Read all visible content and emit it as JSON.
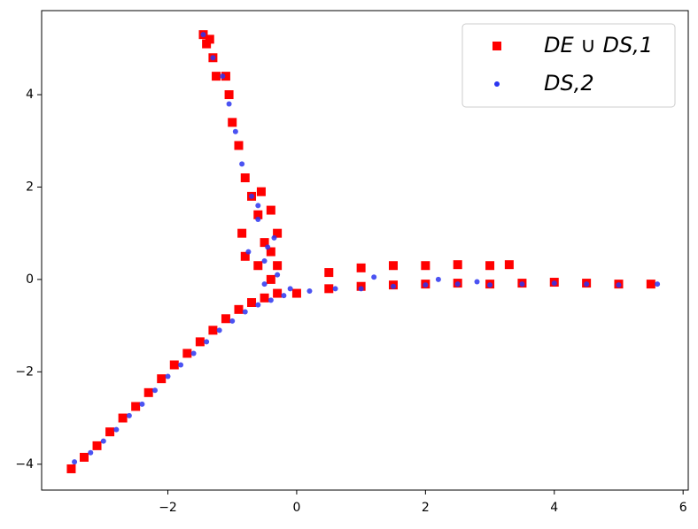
{
  "chart_data": {
    "type": "scatter",
    "xlim": [
      -3.96,
      6.08
    ],
    "ylim": [
      -4.56,
      5.82
    ],
    "xticks": [
      {
        "value": -2,
        "label": "−2"
      },
      0,
      2,
      4,
      6
    ],
    "yticks": [
      {
        "value": -4,
        "label": "−4"
      },
      {
        "value": -2,
        "label": "−2"
      },
      0,
      2,
      4
    ],
    "legend": "upper right",
    "series": [
      {
        "name": "DE ∪ DS,1",
        "color": "#ff0000",
        "marker": "square",
        "x": [
          -3.5,
          -3.3,
          -3.1,
          -2.9,
          -2.7,
          -2.5,
          -2.3,
          -2.1,
          -1.9,
          -1.7,
          -1.5,
          -1.3,
          -1.1,
          -0.9,
          -0.7,
          -0.5,
          -0.3,
          0,
          0.5,
          1,
          1.5,
          2,
          2.5,
          3,
          3.5,
          4,
          4.5,
          5,
          5.5,
          0.5,
          1,
          1.5,
          2,
          2.5,
          3,
          3.3,
          -0.3,
          -0.5,
          -0.6,
          -0.7,
          -0.8,
          -0.9,
          -1.0,
          -1.05,
          -1.1,
          -1.25,
          -1.3,
          -1.4,
          -1.45,
          -1.35,
          -0.85,
          -0.8,
          -0.6,
          -0.4,
          -0.3,
          -0.4,
          -0.55,
          -0.4
        ],
        "values": [
          -4.1,
          -3.85,
          -3.6,
          -3.3,
          -3.0,
          -2.75,
          -2.45,
          -2.15,
          -1.85,
          -1.6,
          -1.35,
          -1.1,
          -0.85,
          -0.65,
          -0.5,
          -0.4,
          -0.3,
          -0.3,
          -0.2,
          -0.15,
          -0.12,
          -0.1,
          -0.08,
          -0.1,
          -0.08,
          -0.06,
          -0.08,
          -0.1,
          -0.1,
          0.15,
          0.25,
          0.3,
          0.3,
          0.32,
          0.3,
          0.32,
          0.3,
          0.8,
          1.4,
          1.8,
          2.2,
          2.9,
          3.4,
          4.0,
          4.4,
          4.4,
          4.8,
          5.1,
          5.3,
          5.2,
          1.0,
          0.5,
          0.3,
          0.6,
          1.0,
          1.5,
          1.9,
          0.0
        ]
      },
      {
        "name": "DS,2",
        "color": "#2b35f0",
        "marker": "circle",
        "x": [
          -3.45,
          -3.2,
          -3.0,
          -2.8,
          -2.6,
          -2.4,
          -2.2,
          -2.0,
          -1.8,
          -1.6,
          -1.4,
          -1.2,
          -1.0,
          -0.8,
          -0.6,
          -0.4,
          -0.2,
          -0.5,
          -0.3,
          -0.1,
          0.2,
          0.6,
          1,
          1.5,
          2,
          2.5,
          3,
          3.5,
          4,
          4.5,
          5,
          5.6,
          1.2,
          2.2,
          2.8,
          -0.45,
          -0.6,
          -0.7,
          -0.85,
          -0.95,
          -1.05,
          -1.15,
          -1.3,
          -1.45,
          -0.75,
          -0.5,
          -0.35,
          -0.6
        ],
        "values": [
          -3.95,
          -3.75,
          -3.5,
          -3.25,
          -2.95,
          -2.7,
          -2.4,
          -2.1,
          -1.85,
          -1.6,
          -1.35,
          -1.1,
          -0.9,
          -0.7,
          -0.55,
          -0.45,
          -0.35,
          -0.1,
          0.1,
          -0.2,
          -0.25,
          -0.2,
          -0.2,
          -0.15,
          -0.12,
          -0.1,
          -0.12,
          -0.1,
          -0.08,
          -0.1,
          -0.12,
          -0.1,
          0.05,
          0.0,
          -0.05,
          0.7,
          1.3,
          1.8,
          2.5,
          3.2,
          3.8,
          4.4,
          4.8,
          5.3,
          0.6,
          0.4,
          0.9,
          1.6
        ]
      }
    ]
  }
}
